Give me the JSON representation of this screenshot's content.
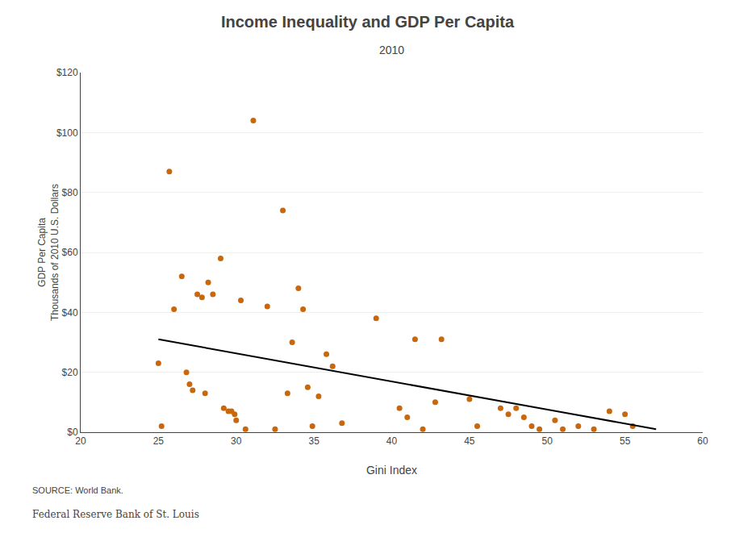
{
  "chart_data": {
    "type": "scatter",
    "title": "Income Inequality and GDP Per Capita",
    "subtitle": "2010",
    "xlabel": "Gini Index",
    "ylabel": [
      "GDP Per Capita",
      "Thousands of 2010 U.S. Dollars"
    ],
    "annotations": [
      "SOURCE: World Bank.",
      "Federal Reserve Bank of St. Louis"
    ],
    "series": [
      {
        "type": "scatter",
        "marker": "circle",
        "color": "#c8680e",
        "x": [
          25.0,
          25.2,
          25.7,
          26.0,
          26.5,
          26.8,
          27.0,
          27.2,
          27.5,
          27.8,
          28.0,
          28.2,
          28.5,
          29.0,
          29.2,
          29.5,
          29.7,
          29.9,
          30.0,
          30.3,
          30.6,
          31.1,
          32.0,
          32.5,
          33.0,
          33.3,
          33.6,
          34.0,
          34.3,
          34.6,
          34.9,
          35.3,
          35.8,
          36.2,
          36.8,
          39.0,
          40.5,
          41.0,
          41.5,
          42.0,
          42.8,
          43.2,
          45.0,
          45.5,
          47.0,
          47.5,
          48.0,
          48.5,
          49.0,
          49.5,
          50.5,
          51.0,
          52.0,
          53.0,
          54.0,
          55.0,
          55.5
        ],
        "values": [
          23,
          2,
          87,
          41,
          52,
          20,
          16,
          14,
          46,
          45,
          13,
          50,
          46,
          58,
          8,
          7,
          7,
          6,
          4,
          44,
          1,
          104,
          42,
          1,
          74,
          13,
          30,
          48,
          41,
          15,
          2,
          12,
          26,
          22,
          3,
          38,
          8,
          5,
          31,
          1,
          10,
          31,
          11,
          2,
          8,
          6,
          8,
          5,
          2,
          1,
          4,
          1,
          2,
          1,
          7,
          6,
          2
        ]
      },
      {
        "type": "line",
        "line_style": "solid",
        "color": "#000000",
        "x": [
          25,
          57
        ],
        "values": [
          31,
          1
        ]
      }
    ],
    "xlim": [
      20,
      60
    ],
    "ylim": [
      0,
      120
    ],
    "xticks": [
      20,
      25,
      30,
      35,
      40,
      45,
      50,
      55,
      60
    ],
    "yticks": [
      {
        "value": 0,
        "label": "$0"
      },
      {
        "value": 20,
        "label": "$20"
      },
      {
        "value": 40,
        "label": "$40"
      },
      {
        "value": 60,
        "label": "$60"
      },
      {
        "value": 80,
        "label": "$80"
      },
      {
        "value": 100,
        "label": "$100"
      },
      {
        "value": 120,
        "label": "$120"
      }
    ],
    "grid": "y"
  }
}
